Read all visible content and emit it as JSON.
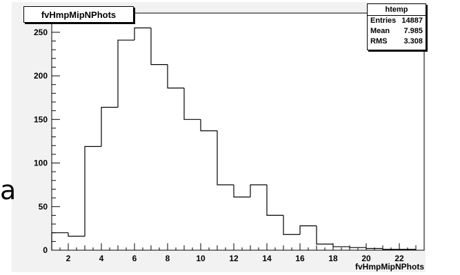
{
  "outside_glyph": "a",
  "chart_data": {
    "type": "bar",
    "title": "fvHmpMipNPhots",
    "xlabel": "fvHmpMipNPhots",
    "ylabel": "",
    "bin_edges": [
      1,
      2,
      3,
      4,
      5,
      6,
      7,
      8,
      9,
      10,
      11,
      12,
      13,
      14,
      15,
      16,
      17,
      18,
      19,
      20,
      21,
      22,
      23
    ],
    "values": [
      20,
      16,
      119,
      164,
      241,
      255,
      213,
      186,
      150,
      137,
      75,
      61,
      75,
      40,
      18,
      28,
      7,
      4,
      3,
      2,
      1,
      1
    ],
    "xlim": [
      1,
      23.5
    ],
    "ylim": [
      0,
      272
    ],
    "x_ticks": [
      "2",
      "4",
      "6",
      "8",
      "10",
      "12",
      "14",
      "16",
      "18",
      "20",
      "22"
    ],
    "y_ticks": [
      "0",
      "50",
      "100",
      "150",
      "200",
      "250"
    ],
    "grid": false,
    "stats": {
      "name": "htemp",
      "rows": [
        {
          "label": "Entries",
          "value": "14887"
        },
        {
          "label": "Mean",
          "value": "7.985"
        },
        {
          "label": "RMS",
          "value": "3.308"
        }
      ]
    }
  }
}
